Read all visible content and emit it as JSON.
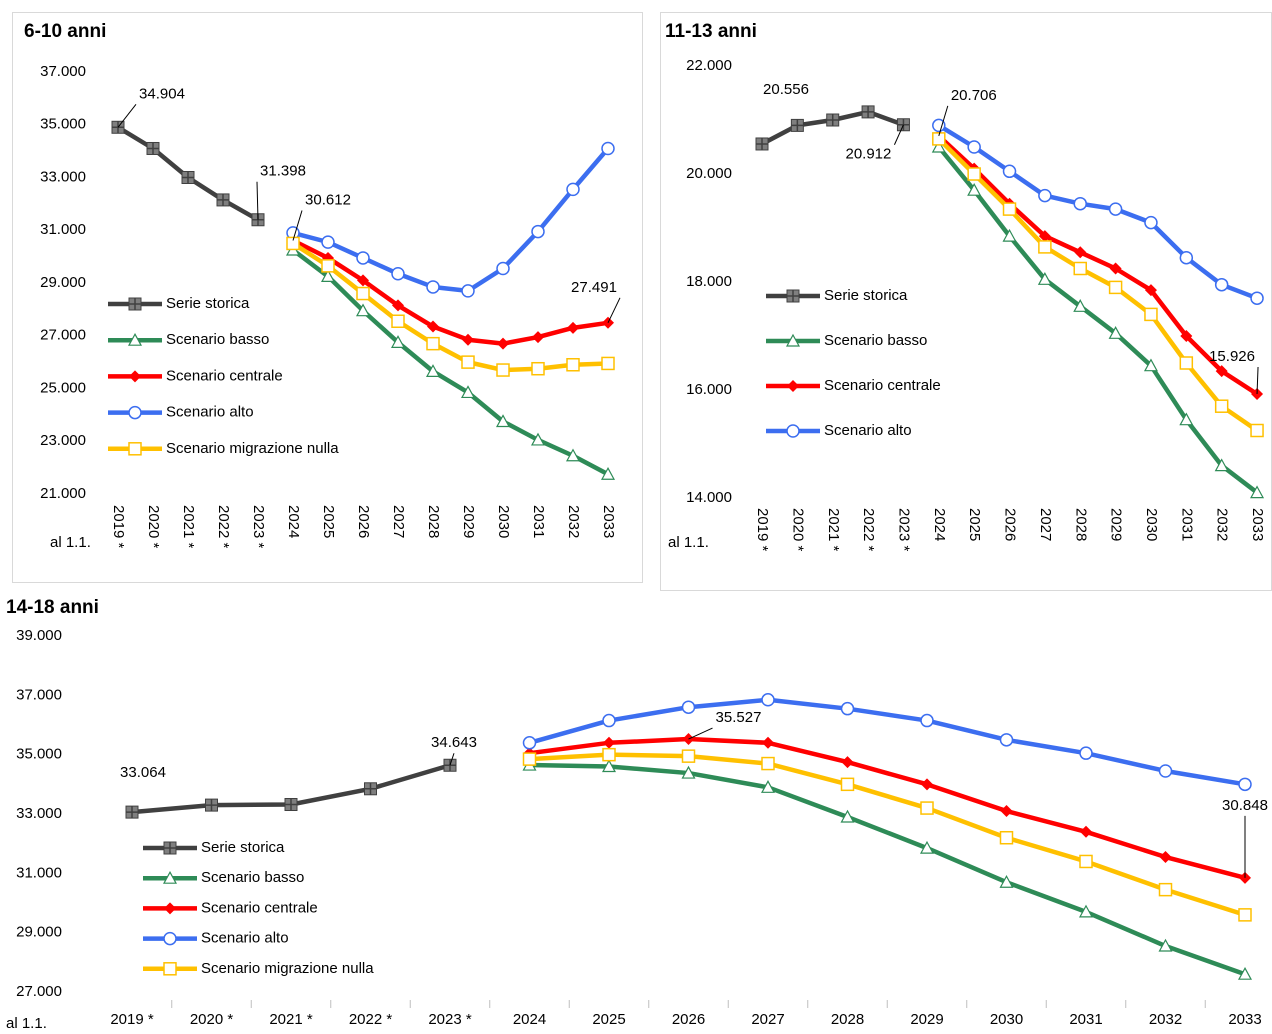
{
  "chart_data": [
    {
      "type": "line",
      "title": "6-10 anni",
      "x_label": "al 1.1.",
      "categories": [
        "2019 *",
        "2020 *",
        "2021 *",
        "2022 *",
        "2023 *",
        "2024",
        "2025",
        "2026",
        "2027",
        "2028",
        "2029",
        "2030",
        "2031",
        "2032",
        "2033"
      ],
      "ylim": [
        21000,
        37000
      ],
      "yticks": [
        {
          "value": 21000,
          "label": "21.000"
        },
        {
          "value": 23000,
          "label": "23.000"
        },
        {
          "value": 25000,
          "label": "25.000"
        },
        {
          "value": 27000,
          "label": "27.000"
        },
        {
          "value": 29000,
          "label": "29.000"
        },
        {
          "value": 31000,
          "label": "31.000"
        },
        {
          "value": 33000,
          "label": "33.000"
        },
        {
          "value": 35000,
          "label": "35.000"
        },
        {
          "value": 37000,
          "label": "37.000"
        }
      ],
      "series": [
        {
          "name": "Serie storica",
          "color": "#404040",
          "marker": "cross",
          "values": [
            34904,
            34100,
            33000,
            32150,
            31398,
            null,
            null,
            null,
            null,
            null,
            null,
            null,
            null,
            null,
            null
          ],
          "value_labels": [
            "34.904",
            null,
            null,
            null,
            "31.398",
            null,
            null,
            null,
            null,
            null,
            null,
            null,
            null,
            null,
            null
          ]
        },
        {
          "name": "Scenario basso",
          "color": "#2e8b57",
          "marker": "triangle",
          "values": [
            null,
            null,
            null,
            null,
            null,
            30250,
            29250,
            27950,
            26750,
            25650,
            24850,
            23750,
            23050,
            22450,
            21750
          ]
        },
        {
          "name": "Scenario centrale",
          "color": "#ff0000",
          "marker": "diamond",
          "values": [
            null,
            null,
            null,
            null,
            null,
            30612,
            29950,
            29100,
            28150,
            27350,
            26850,
            26700,
            26950,
            27300,
            27491
          ],
          "value_labels": [
            null,
            null,
            null,
            null,
            null,
            "30.612",
            null,
            null,
            null,
            null,
            null,
            null,
            null,
            null,
            "27.491"
          ]
        },
        {
          "name": "Scenario alto",
          "color": "#3c6ef0",
          "marker": "circle",
          "values": [
            null,
            null,
            null,
            null,
            null,
            30900,
            30550,
            29950,
            29350,
            28850,
            28700,
            29550,
            30950,
            32550,
            34100
          ]
        },
        {
          "name": "Scenario migrazione nulla",
          "color": "#ffc000",
          "marker": "square",
          "values": [
            null,
            null,
            null,
            null,
            null,
            30500,
            29650,
            28600,
            27550,
            26700,
            26000,
            25700,
            25750,
            25900,
            25950
          ]
        }
      ]
    },
    {
      "type": "line",
      "title": "11-13 anni",
      "x_label": "al 1.1.",
      "categories": [
        "2019 *",
        "2020 *",
        "2021 *",
        "2022 *",
        "2023 *",
        "2024",
        "2025",
        "2026",
        "2027",
        "2028",
        "2029",
        "2030",
        "2031",
        "2032",
        "2033"
      ],
      "ylim": [
        14000,
        22000
      ],
      "yticks": [
        {
          "value": 14000,
          "label": "14.000"
        },
        {
          "value": 16000,
          "label": "16.000"
        },
        {
          "value": 18000,
          "label": "18.000"
        },
        {
          "value": 20000,
          "label": "20.000"
        },
        {
          "value": 22000,
          "label": "22.000"
        }
      ],
      "series": [
        {
          "name": "Serie storica",
          "color": "#404040",
          "marker": "cross",
          "values": [
            20556,
            20900,
            21000,
            21150,
            20912,
            null,
            null,
            null,
            null,
            null,
            null,
            null,
            null,
            null,
            null
          ],
          "value_labels": [
            "20.556",
            null,
            null,
            null,
            "20.912",
            null,
            null,
            null,
            null,
            null,
            null,
            null,
            null,
            null,
            null
          ]
        },
        {
          "name": "Scenario basso",
          "color": "#2e8b57",
          "marker": "triangle",
          "values": [
            null,
            null,
            null,
            null,
            null,
            20500,
            19700,
            18850,
            18050,
            17550,
            17050,
            16450,
            15450,
            14600,
            14100
          ]
        },
        {
          "name": "Scenario centrale",
          "color": "#ff0000",
          "marker": "diamond",
          "values": [
            null,
            null,
            null,
            null,
            null,
            20706,
            20100,
            19450,
            18850,
            18550,
            18250,
            17850,
            17000,
            16350,
            15926
          ],
          "value_labels": [
            null,
            null,
            null,
            null,
            null,
            "20.706",
            null,
            null,
            null,
            null,
            null,
            null,
            null,
            null,
            "15.926"
          ]
        },
        {
          "name": "Scenario alto",
          "color": "#3c6ef0",
          "marker": "circle",
          "values": [
            null,
            null,
            null,
            null,
            null,
            20900,
            20500,
            20050,
            19600,
            19450,
            19350,
            19100,
            18450,
            17950,
            17700
          ]
        },
        {
          "color": "#ffc000",
          "marker": "square",
          "values": [
            null,
            null,
            null,
            null,
            null,
            20650,
            20000,
            19350,
            18650,
            18250,
            17900,
            17400,
            16500,
            15700,
            15250
          ]
        }
      ]
    },
    {
      "type": "line",
      "title": "14-18 anni",
      "x_label": "al 1.1.",
      "categories": [
        "2019 *",
        "2020 *",
        "2021 *",
        "2022 *",
        "2023 *",
        "2024",
        "2025",
        "2026",
        "2027",
        "2028",
        "2029",
        "2030",
        "2031",
        "2032",
        "2033"
      ],
      "ylim": [
        27000,
        39000
      ],
      "yticks": [
        {
          "value": 27000,
          "label": "27.000"
        },
        {
          "value": 29000,
          "label": "29.000"
        },
        {
          "value": 31000,
          "label": "31.000"
        },
        {
          "value": 33000,
          "label": "33.000"
        },
        {
          "value": 35000,
          "label": "35.000"
        },
        {
          "value": 37000,
          "label": "37.000"
        },
        {
          "value": 39000,
          "label": "39.000"
        }
      ],
      "series": [
        {
          "name": "Serie storica",
          "color": "#404040",
          "marker": "cross",
          "values": [
            33064,
            33300,
            33320,
            33850,
            34643,
            null,
            null,
            null,
            null,
            null,
            null,
            null,
            null,
            null,
            null
          ],
          "value_labels": [
            "33.064",
            null,
            null,
            null,
            "34.643",
            null,
            null,
            null,
            null,
            null,
            null,
            null,
            null,
            null,
            null
          ]
        },
        {
          "name": "Scenario basso",
          "color": "#2e8b57",
          "marker": "triangle",
          "values": [
            null,
            null,
            null,
            null,
            null,
            34650,
            34600,
            34380,
            33900,
            32900,
            31850,
            30700,
            29700,
            28550,
            27600
          ]
        },
        {
          "name": "Scenario centrale",
          "color": "#ff0000",
          "marker": "diamond",
          "values": [
            null,
            null,
            null,
            null,
            null,
            35050,
            35400,
            35527,
            35400,
            34750,
            34000,
            33100,
            32400,
            31550,
            30848
          ],
          "value_labels": [
            null,
            null,
            null,
            null,
            null,
            null,
            null,
            "35.527",
            null,
            null,
            null,
            null,
            null,
            null,
            "30.848"
          ]
        },
        {
          "name": "Scenario alto",
          "color": "#3c6ef0",
          "marker": "circle",
          "values": [
            null,
            null,
            null,
            null,
            null,
            35400,
            36150,
            36600,
            36850,
            36550,
            36150,
            35500,
            35050,
            34450,
            34000
          ]
        },
        {
          "name": "Scenario migrazione nulla",
          "color": "#ffc000",
          "marker": "square",
          "values": [
            null,
            null,
            null,
            null,
            null,
            34850,
            35000,
            34950,
            34700,
            34000,
            33200,
            32200,
            31400,
            30450,
            29600
          ]
        }
      ]
    }
  ]
}
